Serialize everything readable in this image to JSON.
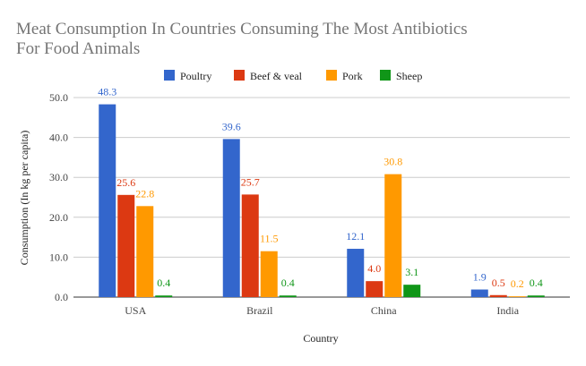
{
  "chart_data": {
    "type": "bar",
    "title_lines": [
      "Meat Consumption In Countries Consuming The Most Antibiotics",
      "For Food Animals"
    ],
    "xlabel": "Country",
    "ylabel": "Consumption (In kg per capita)",
    "categories": [
      "USA",
      "Brazil",
      "China",
      "India"
    ],
    "ylim": [
      0,
      50
    ],
    "yticks": [
      "0.0",
      "10.0",
      "20.0",
      "30.0",
      "40.0",
      "50.0"
    ],
    "ytick_values": [
      0,
      10,
      20,
      30,
      40,
      50
    ],
    "grid": true,
    "legend_position": "top",
    "series": [
      {
        "name": "Poultry",
        "color": "#3366cc",
        "values": [
          48.3,
          39.6,
          12.1,
          1.9
        ],
        "labels": [
          "48.3",
          "39.6",
          "12.1",
          "1.9"
        ]
      },
      {
        "name": "Beef & veal",
        "color": "#dc3912",
        "values": [
          25.6,
          25.7,
          4.0,
          0.5
        ],
        "labels": [
          "25.6",
          "25.7",
          "4.0",
          "0.5"
        ]
      },
      {
        "name": "Pork",
        "color": "#ff9900",
        "values": [
          22.8,
          11.5,
          30.8,
          0.2
        ],
        "labels": [
          "22.8",
          "11.5",
          "30.8",
          "0.2"
        ]
      },
      {
        "name": "Sheep",
        "color": "#109618",
        "values": [
          0.4,
          0.4,
          3.1,
          0.4
        ],
        "labels": [
          "0.4",
          "0.4",
          "3.1",
          "0.4"
        ]
      }
    ]
  }
}
